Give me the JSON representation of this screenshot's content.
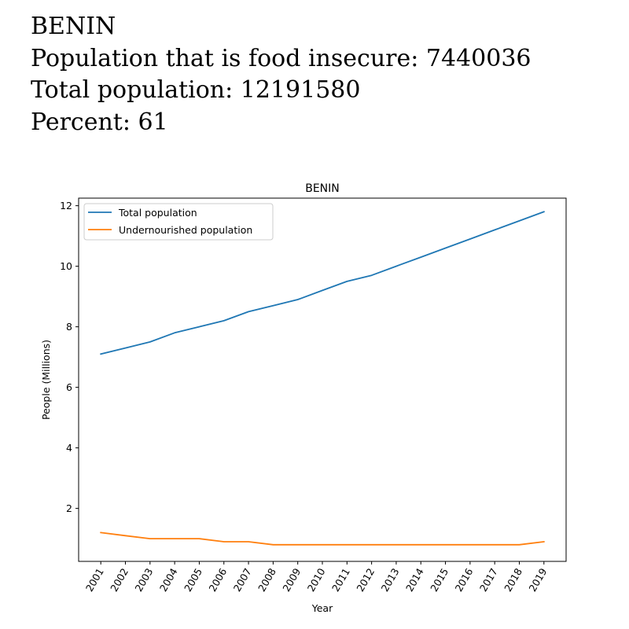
{
  "header": {
    "country": "BENIN",
    "line_insecure": "Population that is food insecure: 7440036",
    "line_total": "Total population: 12191580",
    "line_percent": "Percent: 61"
  },
  "chart_data": {
    "type": "line",
    "title": "BENIN",
    "xlabel": "Year",
    "ylabel": "People (Millions)",
    "x": [
      "2001",
      "2002",
      "2003",
      "2004",
      "2005",
      "2006",
      "2007",
      "2008",
      "2009",
      "2010",
      "2011",
      "2012",
      "2013",
      "2014",
      "2015",
      "2016",
      "2017",
      "2018",
      "2019"
    ],
    "yticks": [
      2,
      4,
      6,
      8,
      10,
      12
    ],
    "ylim": [
      0.25,
      12.25
    ],
    "legend_position": "top-left",
    "grid": false,
    "series": [
      {
        "name": "Total population",
        "color": "#1f77b4",
        "values": [
          7.1,
          7.3,
          7.5,
          7.8,
          8.0,
          8.2,
          8.5,
          8.7,
          8.9,
          9.2,
          9.5,
          9.7,
          10.0,
          10.3,
          10.6,
          10.9,
          11.2,
          11.5,
          11.8
        ]
      },
      {
        "name": "Undernourished population",
        "color": "#ff7f0e",
        "values": [
          1.2,
          1.1,
          1.0,
          1.0,
          1.0,
          0.9,
          0.9,
          0.8,
          0.8,
          0.8,
          0.8,
          0.8,
          0.8,
          0.8,
          0.8,
          0.8,
          0.8,
          0.8,
          0.9
        ]
      }
    ]
  }
}
